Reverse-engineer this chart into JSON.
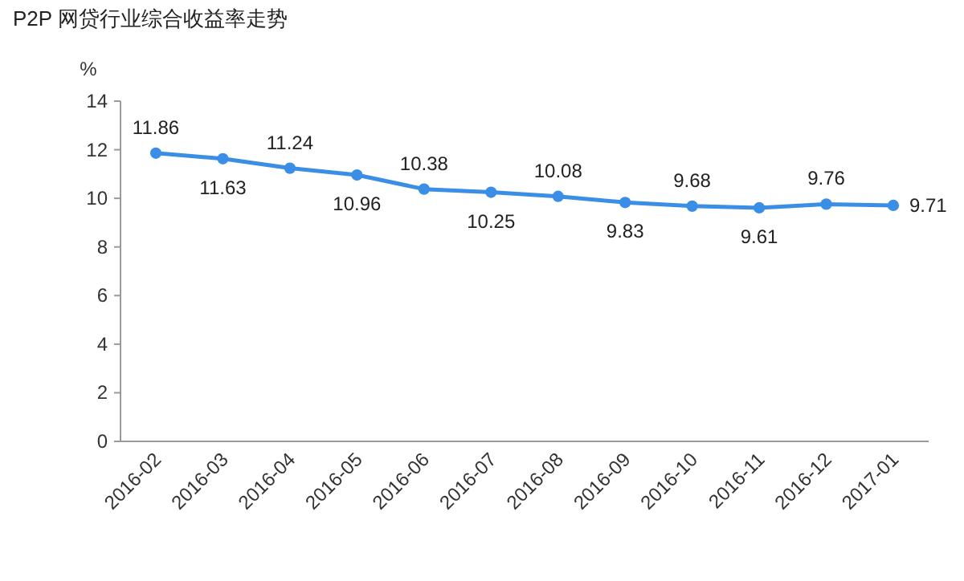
{
  "chart_data": {
    "type": "line",
    "title": "P2P 网贷行业综合收益率走势",
    "ylabel": "%",
    "categories": [
      "2016-02",
      "2016-03",
      "2016-04",
      "2016-05",
      "2016-06",
      "2016-07",
      "2016-08",
      "2016-09",
      "2016-10",
      "2016-11",
      "2016-12",
      "2017-01"
    ],
    "series": [
      {
        "color": "#3a8ee6",
        "values": [
          11.86,
          11.63,
          11.24,
          10.96,
          10.38,
          10.25,
          10.08,
          9.83,
          9.68,
          9.61,
          9.76,
          9.71
        ]
      }
    ],
    "ylim": [
      0,
      14
    ],
    "yticks": [
      0,
      2,
      4,
      6,
      8,
      10,
      12,
      14
    ],
    "grid": false,
    "marker": "circle",
    "data_labels": true
  }
}
